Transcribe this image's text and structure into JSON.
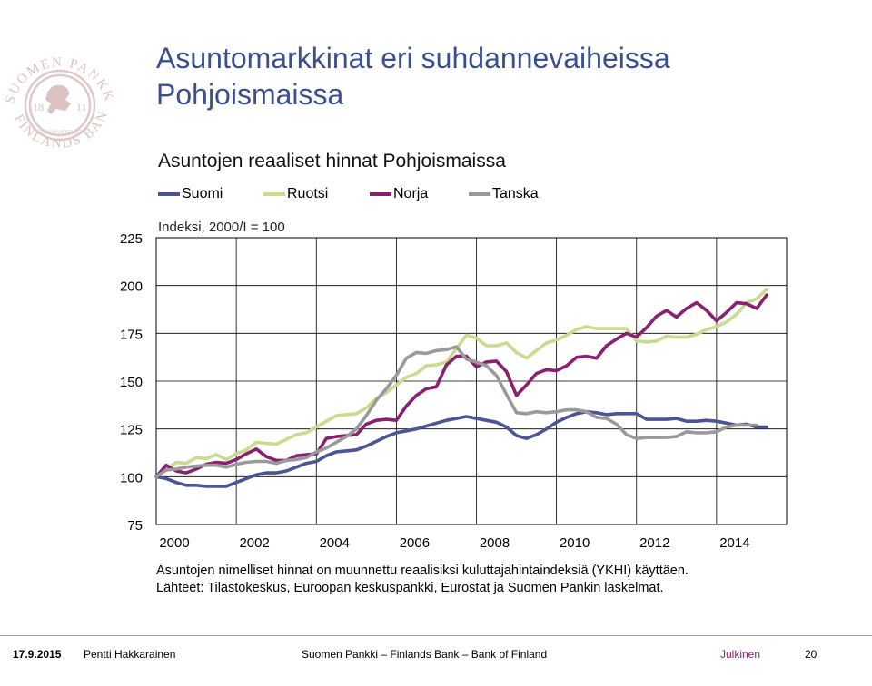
{
  "slide": {
    "title": "Asuntomarkkinat eri suhdannevaiheissa Pohjoismaissa"
  },
  "logo": {
    "text_top": "SUOMEN PANKKI",
    "text_bottom": "FINLANDS BANK",
    "year_left": "18",
    "year_right": "11",
    "ribbon": "EUROSYSTEMET"
  },
  "chart_data": {
    "type": "line",
    "title": "Asuntojen reaaliset hinnat Pohjoismaissa",
    "ylabel": "Indeksi, 2000/I = 100",
    "xlabel": "",
    "ylim": [
      75,
      225
    ],
    "yticks": [
      "75",
      "100",
      "125",
      "150",
      "175",
      "200",
      "225"
    ],
    "xlim": [
      2000,
      2015.75
    ],
    "xticks": [
      "2000",
      "2002",
      "2004",
      "2006",
      "2008",
      "2010",
      "2012",
      "2014"
    ],
    "grid": true,
    "legend_position": "top",
    "colors": {
      "Suomi": "#4b5596",
      "Ruotsi": "#c8db8e",
      "Norja": "#8a2070",
      "Tanska": "#9a9a9a"
    },
    "series": [
      {
        "name": "Suomi",
        "start": 2000,
        "step": 0.25,
        "values": [
          100,
          99,
          97,
          95.5,
          95.5,
          95,
          95,
          95,
          97,
          99,
          101,
          102,
          102,
          103,
          105,
          107,
          108,
          111,
          113,
          113.5,
          114,
          116,
          118.5,
          121,
          123,
          124,
          125,
          126.5,
          128,
          129.5,
          130.5,
          131.5,
          130.5,
          129.5,
          128.5,
          126,
          121.5,
          120,
          122,
          125,
          128.5,
          131,
          133,
          134,
          133.5,
          132.5,
          133,
          133,
          133,
          130,
          130,
          130,
          130.5,
          129,
          129,
          129.5,
          129,
          128,
          127,
          127.5,
          126,
          126
        ]
      },
      {
        "name": "Ruotsi",
        "start": 2000,
        "step": 0.25,
        "values": [
          100,
          104,
          107.5,
          107,
          110,
          109.5,
          111.5,
          109,
          112,
          114,
          118,
          117.5,
          117,
          119.5,
          122,
          123,
          126,
          129,
          132,
          132.5,
          133,
          136,
          141,
          144,
          148,
          152,
          154,
          158,
          158.5,
          160,
          167,
          174,
          172.5,
          168.5,
          168.5,
          170,
          165,
          162,
          166,
          170,
          171.5,
          174,
          177,
          178.5,
          177.5,
          177.5,
          177.5,
          177.5,
          171,
          170.5,
          171,
          173.5,
          173,
          173,
          174.5,
          177,
          178.5,
          181,
          185,
          191,
          193,
          198
        ]
      },
      {
        "name": "Norja",
        "start": 2000,
        "step": 0.25,
        "values": [
          100,
          106,
          103,
          102,
          104,
          106.5,
          107.5,
          107,
          109,
          112,
          114.5,
          110.5,
          108.5,
          108.5,
          111,
          111.5,
          112,
          120,
          121,
          121.5,
          122,
          127.5,
          129.5,
          130,
          129.5,
          137,
          142.5,
          146,
          147,
          158.5,
          163,
          163,
          157.5,
          160,
          160.5,
          155,
          142.5,
          148,
          154,
          156,
          155.5,
          158,
          162.5,
          163,
          162,
          168.5,
          172,
          175,
          173,
          178,
          184,
          187,
          183.5,
          188,
          191,
          187,
          181.5,
          186,
          191,
          190.5,
          188,
          195
        ]
      },
      {
        "name": "Tanska",
        "start": 2000,
        "step": 0.25,
        "values": [
          100,
          103.5,
          104,
          105,
          105.5,
          106,
          106,
          105,
          106.5,
          107.5,
          108,
          108,
          107,
          108.5,
          109,
          110,
          113,
          115,
          118,
          121,
          125,
          132,
          140,
          146,
          153,
          162,
          165,
          164.5,
          166,
          166.5,
          168,
          161.5,
          160,
          158,
          153,
          143,
          133.5,
          133,
          134,
          133.5,
          134,
          135,
          135,
          134,
          131,
          130.5,
          127.5,
          122,
          120,
          120.5,
          120.5,
          120.5,
          121,
          123.5,
          123,
          123,
          123.5,
          126,
          127,
          127,
          127
        ]
      }
    ]
  },
  "notes": {
    "line1": "Asuntojen nimelliset hinnat on muunnettu reaalisiksi kuluttajahintaindeksiä (YKHI) käyttäen.",
    "line2": "Lähteet: Tilastokeskus, Euroopan keskuspankki, Eurostat ja Suomen Pankin laskelmat."
  },
  "footer": {
    "date": "17.9.2015",
    "author": "Pentti Hakkarainen",
    "organization": "Suomen Pankki – Finlands Bank – Bank of Finland",
    "classification": "Julkinen",
    "page": "20"
  }
}
